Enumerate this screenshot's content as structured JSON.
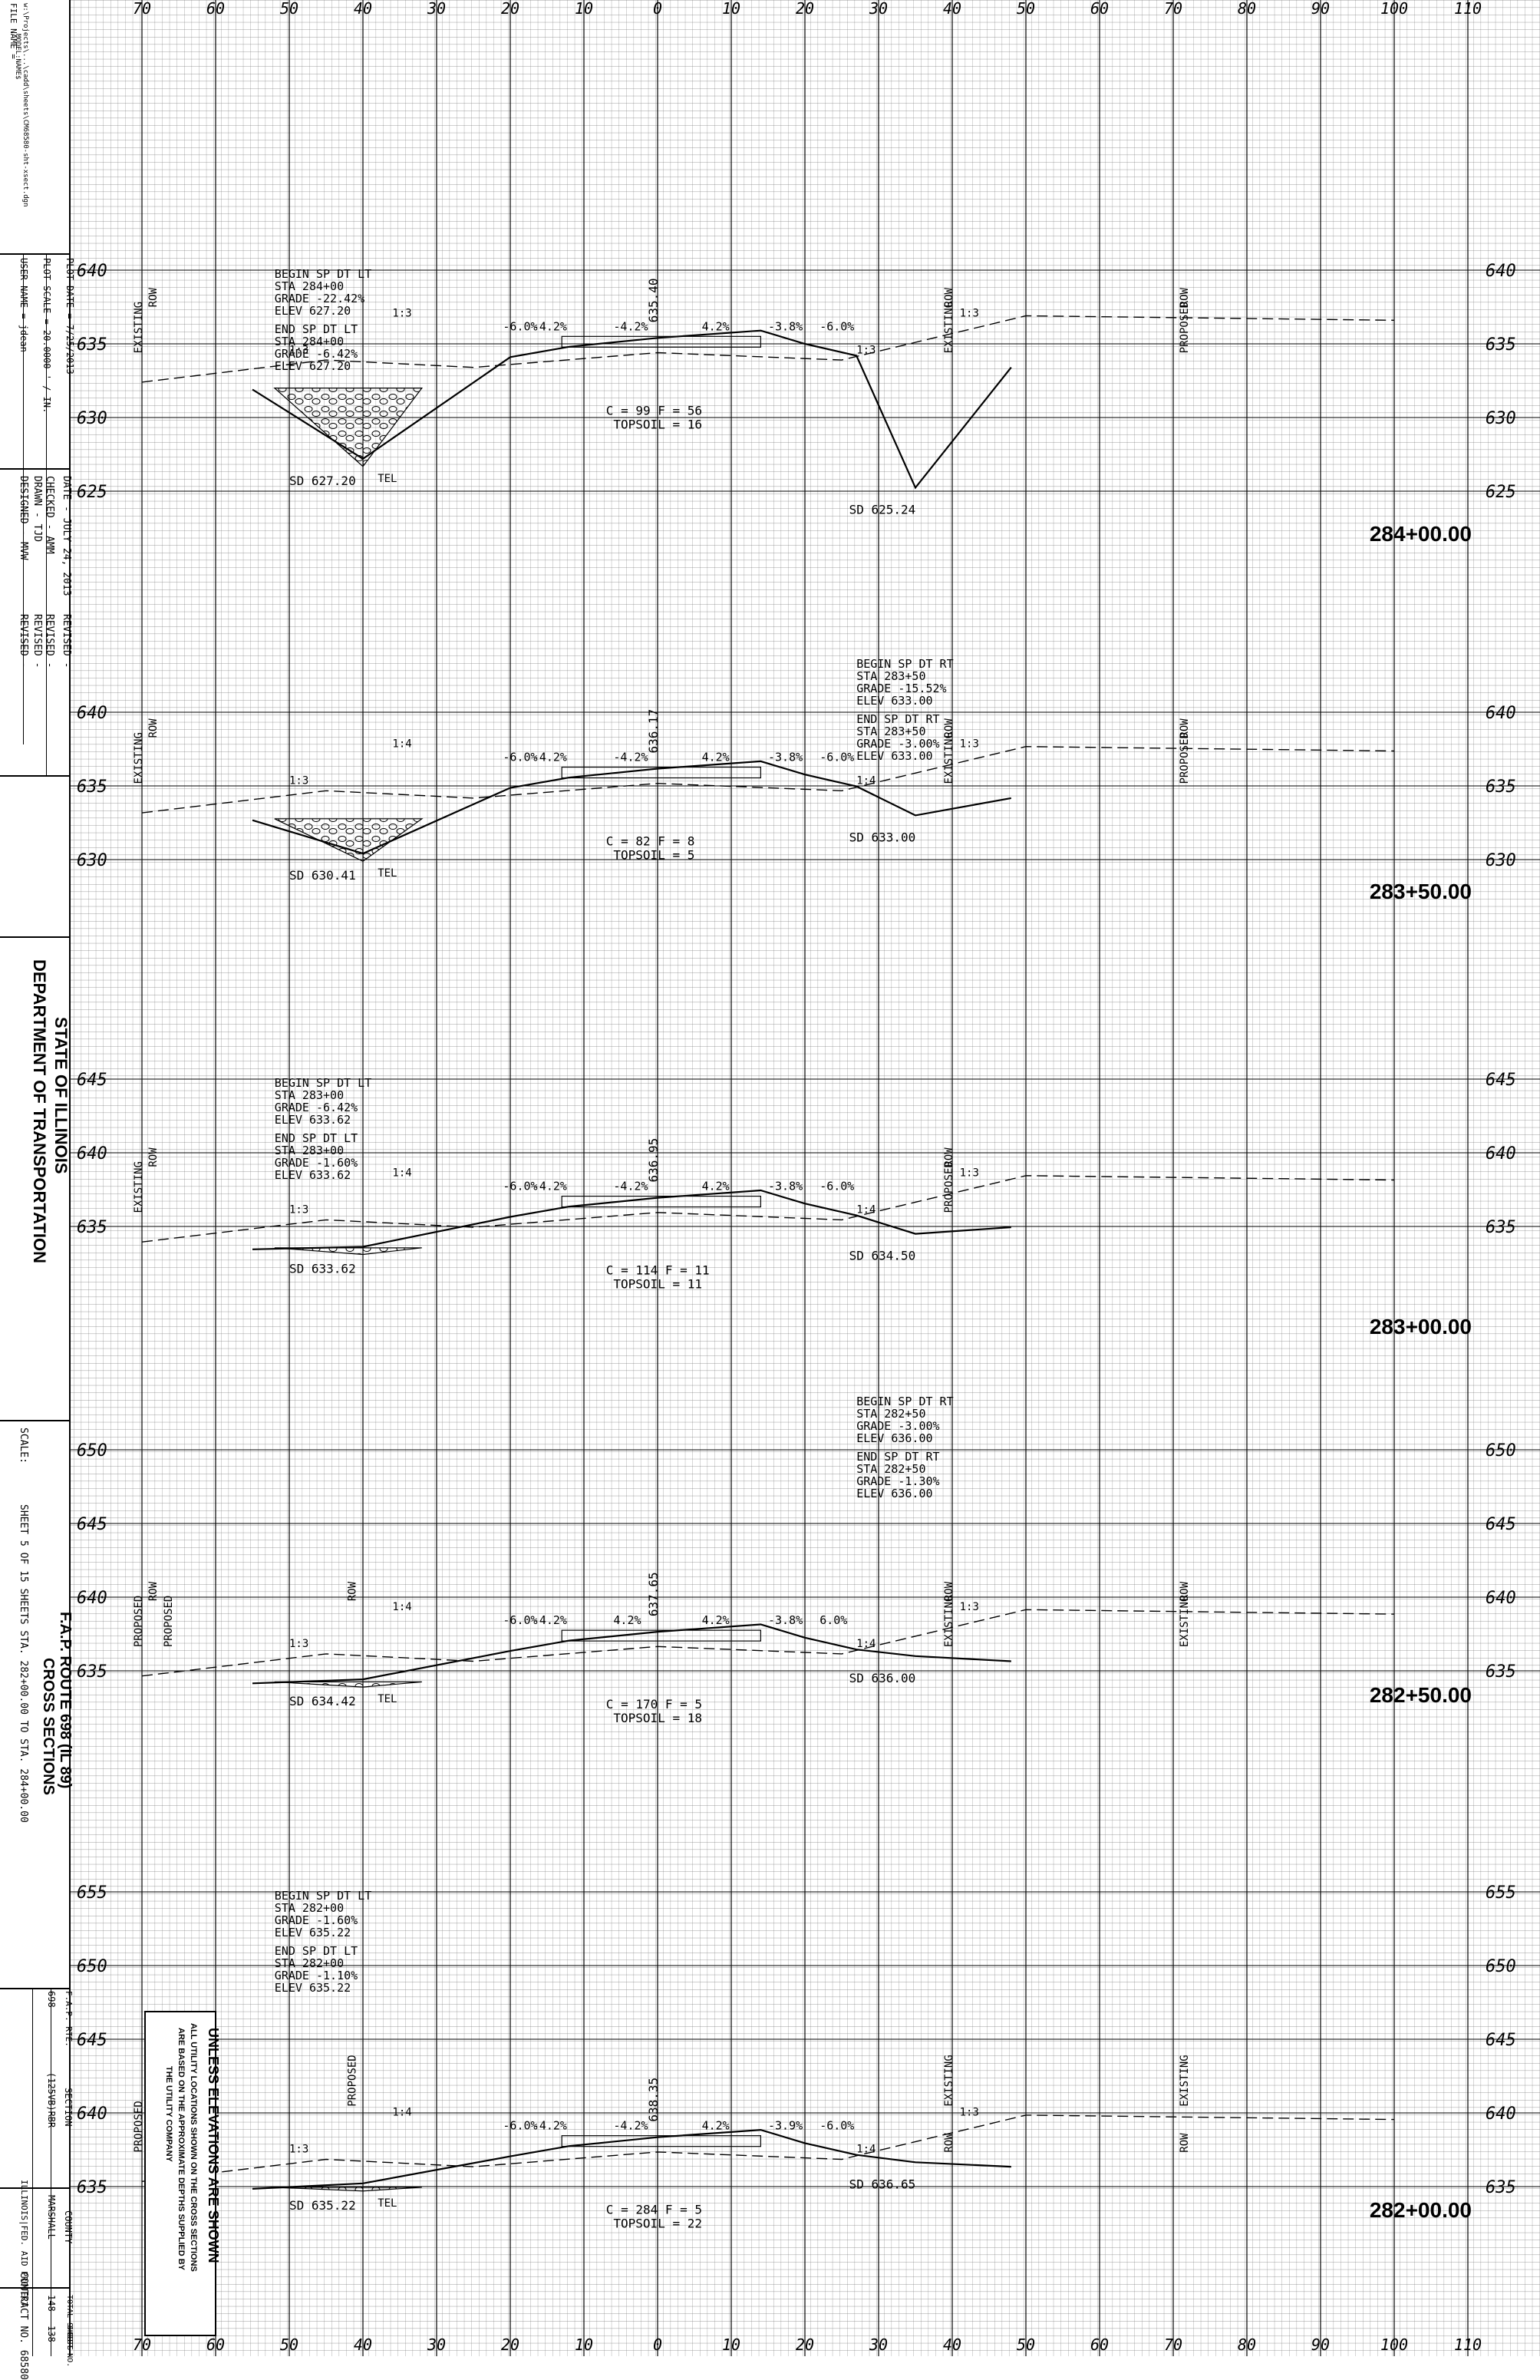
{
  "title_block": {
    "file_name": "FILE NAME =",
    "file_path": "w:\\Projects\\...\\cadd\\sheets\\CM68580-sht-xsect.dgn",
    "model_name": "MODEL:NAME$",
    "user_name": "USER NAME = jdean",
    "plot_scale": "PLOT SCALE = 20.0000 ' / IN.",
    "plot_date": "PLOT DATE = 7/25/2013",
    "designed": "DESIGNED  -  MVW",
    "drawn": "DRAWN  -  TJD",
    "checked": "CHECKED  -  AMM",
    "date": "DATE  -  JULY 24, 2013",
    "revised_1": "REVISED  -",
    "revised_2": "REVISED  -",
    "revised_3": "REVISED  -",
    "revised_4": "REVISED  -",
    "agency_line1": "STATE OF ILLINOIS",
    "agency_line2": "DEPARTMENT OF TRANSPORTATION",
    "route_line1": "F.A.P. ROUTE 698 (IL 89)",
    "route_line2": "CROSS SECTIONS",
    "scale": "SCALE:",
    "sheet_info": "SHEET  5   OF 15  SHEETS   STA. 282+00.00   TO STA. 284+00.00",
    "fap_rte_label": "F.A.P. RTE.",
    "fap_rte": "698",
    "section_label": "SECTION",
    "section": "(125VB)RBR",
    "county_label": "COUNTY",
    "county": "MARSHALL",
    "total_sheets_label": "TOTAL SHEETS",
    "total_sheets": "148",
    "sheet_no_label": "SHEET NO.",
    "sheet_no": "138",
    "contract_label": "ILLINOIS|FED. AID PROJECT",
    "contract": "CONTRACT NO. 68580"
  },
  "note_box": {
    "line1": "UNLESS ELEVATIONS ARE SHOWN",
    "line2": "ALL UTILITY LOCATIONS SHOWN ON THE CROSS SECTIONS",
    "line3": "ARE BASED ON THE APPROXIMATE DEPTHS SUPPLIED BY",
    "line4": "THE UTILITY COMPANY"
  },
  "offset_axis": [
    "70",
    "60",
    "50",
    "40",
    "30",
    "20",
    "10",
    "0",
    "10",
    "20",
    "30",
    "40",
    "50",
    "60",
    "70",
    "80",
    "90",
    "100",
    "110"
  ],
  "sections": [
    {
      "station": "284+00.00",
      "elevations": [
        "640",
        "635",
        "630",
        "625"
      ],
      "centerline_elev": "635.40",
      "earthwork": "C = 99   F = 56",
      "topsoil": "TOPSOIL = 16",
      "notes_left": [
        "BEGIN SP DT LT",
        "STA 284+00",
        "GRADE -22.42%",
        "ELEV 627.20",
        "END SP DT LT",
        "STA 284+00",
        "GRADE -6.42%",
        "ELEV 627.20"
      ],
      "notes_right": [],
      "sd_left": "SD 627.20",
      "sd_right": "SD 625.24",
      "slopes": [
        "-6.0%",
        "-4.2%",
        "-4.2%",
        "4.2%",
        "-3.8%",
        "-6.0%"
      ],
      "ratios": [
        "1:3",
        "1:3",
        "1:3",
        "1:3"
      ],
      "labels": [
        "ROW",
        "EXISTING",
        "ROW",
        "EXISTING",
        "ROW",
        "PROPOSED",
        "TEL"
      ]
    },
    {
      "station": "283+50.00",
      "elevations": [
        "640",
        "635",
        "630"
      ],
      "centerline_elev": "636.17",
      "earthwork": "C = 82   F = 8",
      "topsoil": "TOPSOIL = 5",
      "notes_left": [],
      "notes_right": [
        "BEGIN SP DT RT",
        "STA 283+50",
        "GRADE -15.52%",
        "ELEV 633.00",
        "END SP DT RT",
        "STA 283+50",
        "GRADE -3.00%",
        "ELEV 633.00"
      ],
      "sd_left": "SD 630.41",
      "sd_right": "SD 633.00",
      "slopes": [
        "-6.0%",
        "-4.2%",
        "-4.2%",
        "4.2%",
        "-3.8%",
        "-6.0%"
      ],
      "ratios": [
        "1:3",
        "1:4",
        "1:4",
        "1:3"
      ],
      "labels": [
        "ROW",
        "EXISTING",
        "ROW",
        "EXISTING",
        "ROW",
        "PROPOSED",
        "TEL"
      ]
    },
    {
      "station": "283+00.00",
      "elevations": [
        "645",
        "640",
        "635"
      ],
      "centerline_elev": "636.95",
      "earthwork": "C = 114   F = 11",
      "topsoil": "TOPSOIL = 11",
      "notes_left": [
        "BEGIN SP DT LT",
        "STA 283+00",
        "GRADE -6.42%",
        "ELEV 633.62",
        "END SP DT LT",
        "STA 283+00",
        "GRADE -1.60%",
        "ELEV 633.62"
      ],
      "notes_right": [],
      "sd_left": "SD 633.62",
      "sd_right": "SD 634.50",
      "slopes": [
        "-6.0%",
        "-4.2%",
        "-4.2%",
        "4.2%",
        "-3.8%",
        "-6.0%"
      ],
      "ratios": [
        "1:3",
        "1:4",
        "1:4",
        "1:3"
      ],
      "labels": [
        "ROW",
        "EXISTING",
        "ROW",
        "PROPOSED"
      ]
    },
    {
      "station": "282+50.00",
      "elevations": [
        "650",
        "645",
        "640",
        "635"
      ],
      "centerline_elev": "637.65",
      "earthwork": "C = 170   F = 5",
      "topsoil": "TOPSOIL = 18",
      "notes_left": [],
      "notes_right": [
        "BEGIN SP DT RT",
        "STA 282+50",
        "GRADE -3.00%",
        "ELEV 636.00",
        "END SP DT RT",
        "STA 282+50",
        "GRADE -1.30%",
        "ELEV 636.00"
      ],
      "sd_left": "SD 634.42",
      "sd_right": "SD 636.00",
      "slopes": [
        "-6.0%",
        "-4.2%",
        "4.2%",
        "4.2%",
        "-3.8%",
        "6.0%"
      ],
      "ratios": [
        "1:3",
        "1:4",
        "1:4",
        "1:3"
      ],
      "labels": [
        "ROW",
        "PROPOSED",
        "ROW",
        "EXISTING",
        "ROW",
        "EXISTING",
        "ROW",
        "PROPOSED",
        "TEL"
      ]
    },
    {
      "station": "282+00.00",
      "elevations": [
        "655",
        "650",
        "645",
        "640",
        "635"
      ],
      "centerline_elev": "638.35",
      "earthwork": "C = 284   F = 5",
      "topsoil": "TOPSOIL = 22",
      "notes_left": [
        "BEGIN SP DT LT",
        "STA 282+00",
        "GRADE -1.60%",
        "ELEV 635.22",
        "END SP DT LT",
        "STA 282+00",
        "GRADE -1.10%",
        "ELEV 635.22"
      ],
      "notes_right": [],
      "sd_left": "SD 635.22",
      "sd_right": "SD 636.65",
      "slopes": [
        "-6.0%",
        "-4.2%",
        "-4.2%",
        "4.2%",
        "-3.9%",
        "-6.0%"
      ],
      "ratios": [
        "1:3",
        "1:4",
        "1:4",
        "1:3"
      ],
      "labels": [
        "ROW",
        "PROPOSED",
        "EXISTING",
        "ROW",
        "EXISTING",
        "ROW",
        "PROPOSED",
        "TEL"
      ]
    }
  ]
}
